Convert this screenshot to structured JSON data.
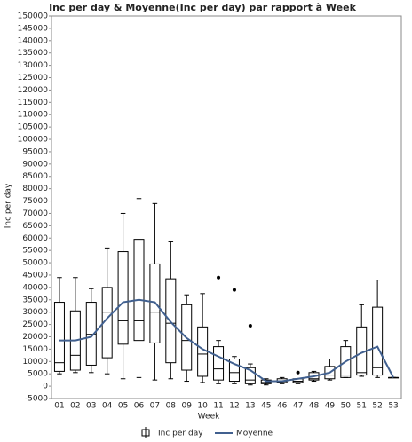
{
  "chart_data": {
    "type": "box",
    "title": "Inc per day & Moyenne(Inc per day) par rapport à Week",
    "x_label": "Week",
    "y_label": "Inc per day",
    "categories": [
      "01",
      "02",
      "03",
      "04",
      "05",
      "06",
      "07",
      "08",
      "09",
      "10",
      "11",
      "12",
      "13",
      "45",
      "46",
      "47",
      "48",
      "49",
      "50",
      "51",
      "52",
      "53"
    ],
    "series": [
      {
        "name": "Inc per day",
        "color": "#000000",
        "low": [
          5000,
          5500,
          5500,
          5000,
          3000,
          3500,
          2500,
          3000,
          2000,
          1500,
          1000,
          1000,
          500,
          500,
          1000,
          1000,
          2000,
          2500,
          3500,
          4000,
          3500,
          3500
        ],
        "q1": [
          6000,
          6500,
          8500,
          11500,
          17000,
          18500,
          17500,
          9500,
          6500,
          4000,
          2500,
          2000,
          1000,
          1000,
          1500,
          1500,
          2500,
          3000,
          3500,
          4500,
          4500,
          3500
        ],
        "median": [
          9500,
          12500,
          21000,
          30000,
          26500,
          26500,
          30000,
          25500,
          18500,
          13000,
          7000,
          5500,
          2500,
          1500,
          2000,
          2000,
          3000,
          4500,
          4500,
          5500,
          7500,
          3500
        ],
        "q3": [
          34000,
          30500,
          34000,
          40000,
          54500,
          59500,
          49500,
          43500,
          33000,
          24000,
          16000,
          11000,
          7500,
          2500,
          3000,
          3000,
          5500,
          8000,
          16000,
          24000,
          32000,
          3500
        ],
        "high": [
          44000,
          44000,
          39500,
          56000,
          70000,
          76000,
          74000,
          58500,
          37000,
          37500,
          18500,
          12000,
          9000,
          3000,
          3500,
          3000,
          6000,
          11000,
          18500,
          33000,
          43000,
          3500
        ],
        "outliers": [
          null,
          null,
          null,
          null,
          null,
          null,
          null,
          null,
          null,
          null,
          44000,
          39000,
          24500,
          null,
          null,
          5500,
          null,
          null,
          null,
          null,
          null,
          null
        ]
      },
      {
        "name": "Moyenne",
        "type": "line",
        "color": "#41608f",
        "values": [
          18500,
          18500,
          20000,
          27500,
          34000,
          35000,
          34000,
          26000,
          19500,
          15000,
          12000,
          9000,
          6500,
          2000,
          2000,
          3000,
          4000,
          5500,
          10000,
          13500,
          16000,
          3500
        ]
      }
    ],
    "ylim": [
      -5000,
      150000
    ],
    "yticks": [
      -5000,
      0,
      5000,
      10000,
      15000,
      20000,
      25000,
      30000,
      35000,
      40000,
      45000,
      50000,
      55000,
      60000,
      65000,
      70000,
      75000,
      80000,
      85000,
      90000,
      95000,
      100000,
      105000,
      110000,
      115000,
      120000,
      125000,
      130000,
      135000,
      140000,
      145000,
      150000
    ]
  }
}
